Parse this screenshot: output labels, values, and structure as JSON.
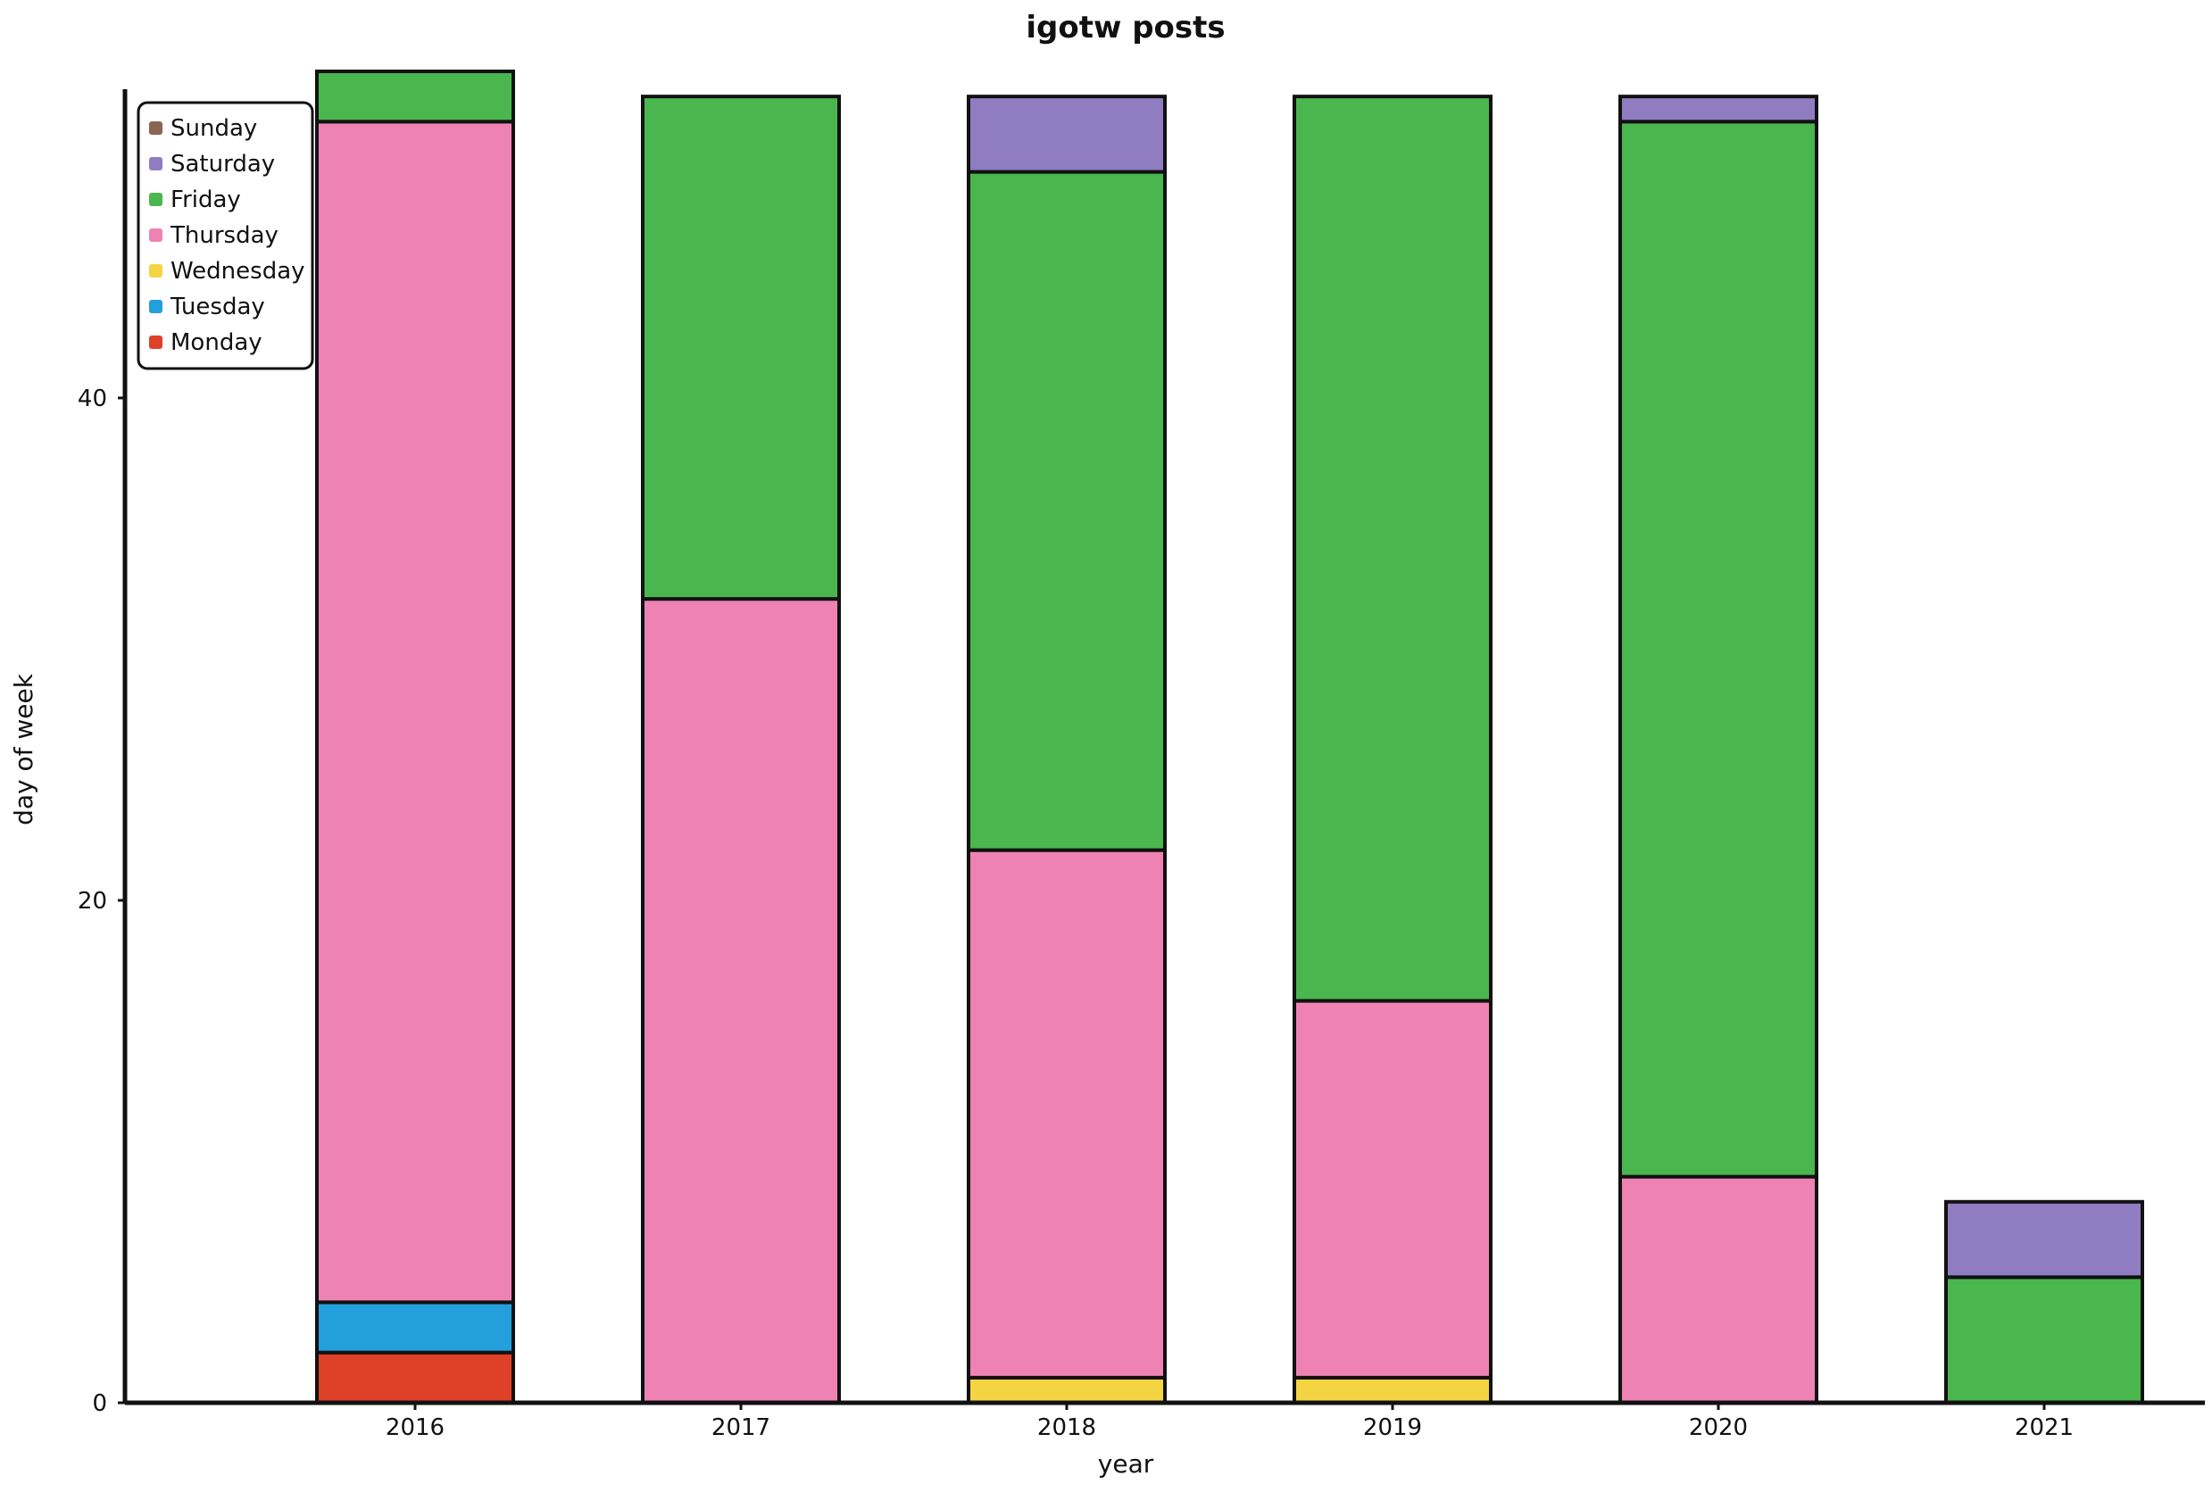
{
  "chart_data": {
    "type": "bar",
    "stacked": true,
    "title": "igotw posts",
    "xlabel": "year",
    "ylabel": "day of week",
    "categories": [
      "2016",
      "2017",
      "2018",
      "2019",
      "2020",
      "2021"
    ],
    "ylim": [
      0,
      53
    ],
    "yticks": [
      0,
      20,
      40
    ],
    "grid": false,
    "legend_position": "top-left",
    "series": [
      {
        "name": "Monday",
        "color": "#de4127",
        "values": [
          2,
          0,
          0,
          0,
          0,
          0
        ]
      },
      {
        "name": "Tuesday",
        "color": "#23a0db",
        "values": [
          2,
          0,
          0,
          0,
          0,
          0
        ]
      },
      {
        "name": "Wednesday",
        "color": "#f4d442",
        "values": [
          0,
          0,
          1,
          1,
          0,
          0
        ]
      },
      {
        "name": "Thursday",
        "color": "#ee83b3",
        "values": [
          47,
          32,
          21,
          15,
          9,
          0
        ]
      },
      {
        "name": "Friday",
        "color": "#4ab64e",
        "values": [
          2,
          20,
          27,
          36,
          42,
          5
        ]
      },
      {
        "name": "Saturday",
        "color": "#8f7cc1",
        "values": [
          0,
          0,
          3,
          0,
          1,
          3
        ]
      },
      {
        "name": "Sunday",
        "color": "#8c6551",
        "values": [
          0,
          0,
          0,
          0,
          0,
          0
        ]
      }
    ]
  }
}
